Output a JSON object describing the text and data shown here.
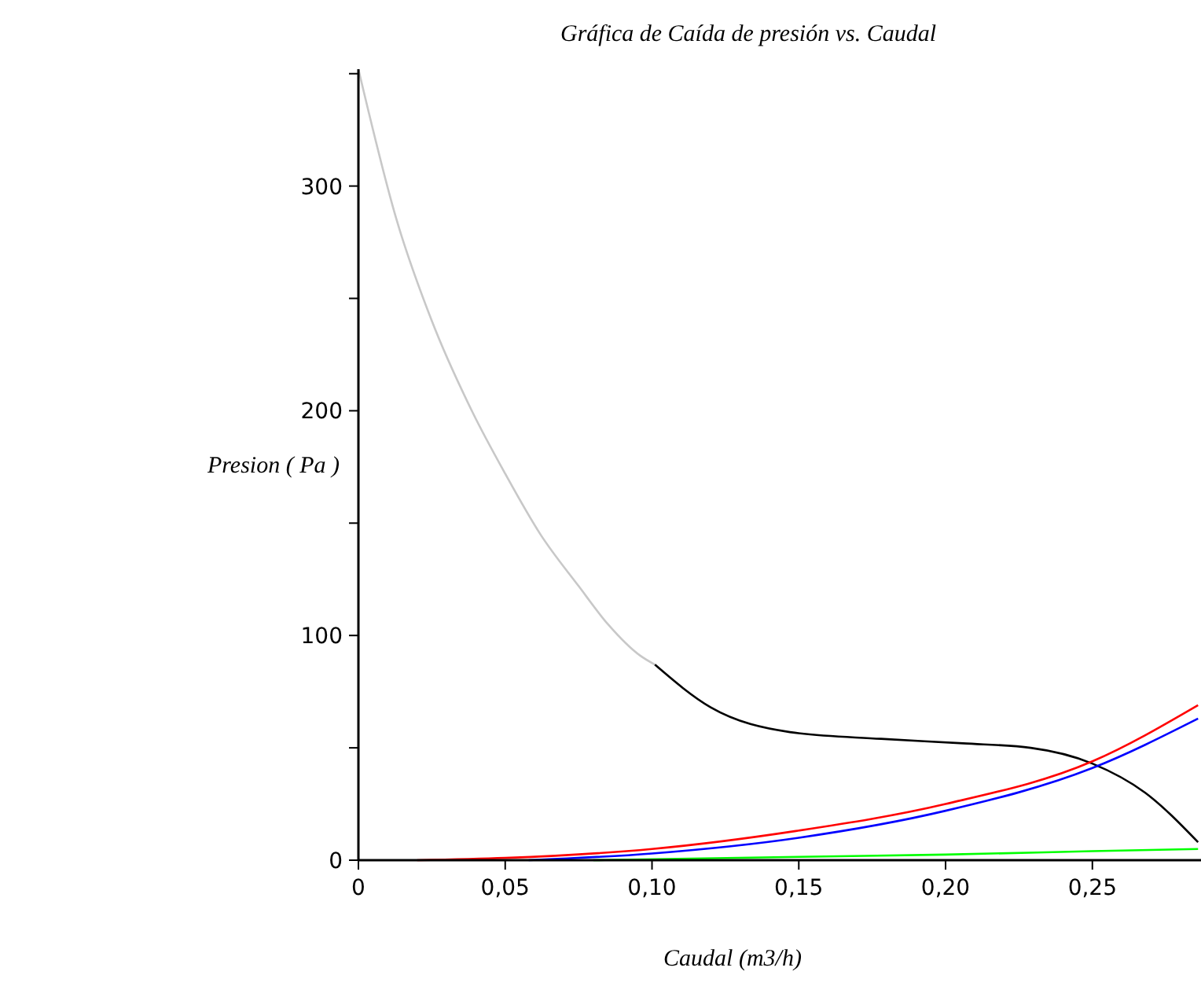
{
  "chart_data": {
    "type": "line",
    "title": "Gráfica de Caída de presión vs. Caudal",
    "xlabel": "Caudal (m3/h)",
    "ylabel": "Presion ( Pa )",
    "xlim": [
      0,
      0.287
    ],
    "ylim": [
      0,
      352
    ],
    "xticks": [
      0,
      {
        "value": 0.05,
        "label": "0,05"
      },
      {
        "value": 0.1,
        "label": "0,10"
      },
      {
        "value": 0.15,
        "label": "0,15"
      },
      {
        "value": 0.2,
        "label": "0,20"
      },
      {
        "value": 0.25,
        "label": "0,25"
      }
    ],
    "yticks": [
      0,
      {
        "value": 50,
        "label": null
      },
      100,
      {
        "value": 150,
        "label": null
      },
      200,
      {
        "value": 250,
        "label": null
      },
      300,
      {
        "value": 350,
        "label": null
      }
    ],
    "grid": false,
    "marker": "none",
    "line_style": "solid",
    "series": [
      {
        "color": "#c8c8c8",
        "x": [
          0,
          0.013,
          0.025,
          0.039,
          0.05,
          0.062,
          0.075,
          0.085,
          0.096,
          0.101
        ],
        "values": [
          352,
          285,
          240,
          199,
          172,
          145,
          122,
          105,
          91,
          87
        ]
      },
      {
        "color": "#000000",
        "x": [
          0.101,
          0.12,
          0.147,
          0.178,
          0.206,
          0.229,
          0.25,
          0.268,
          0.286
        ],
        "values": [
          87,
          68,
          57,
          54,
          52,
          50,
          43,
          30,
          8
        ]
      },
      {
        "color": "#ff0000",
        "x": [
          0.02,
          0.05,
          0.1,
          0.149,
          0.2,
          0.25,
          0.286
        ],
        "values": [
          0,
          1,
          5,
          13,
          25,
          44,
          69
        ]
      },
      {
        "color": "#0000ff",
        "x": [
          0.058,
          0.1,
          0.15,
          0.2,
          0.25,
          0.286
        ],
        "values": [
          0,
          3,
          10,
          22,
          41,
          63
        ]
      },
      {
        "color": "#00ff00",
        "x": [
          0.08,
          0.15,
          0.2,
          0.25,
          0.286
        ],
        "values": [
          0,
          1.5,
          2.5,
          4,
          5
        ]
      }
    ]
  }
}
